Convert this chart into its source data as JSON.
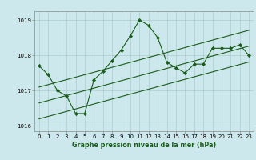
{
  "title": "",
  "xlabel": "Graphe pression niveau de la mer (hPa)",
  "ylabel": "",
  "bg_color": "#cce8ec",
  "grid_color": "#aacccc",
  "line_color": "#1a5c1a",
  "marker_color": "#1a5c1a",
  "x_data": [
    0,
    1,
    2,
    3,
    4,
    5,
    6,
    7,
    8,
    9,
    10,
    11,
    12,
    13,
    14,
    15,
    16,
    17,
    18,
    19,
    20,
    21,
    22,
    23
  ],
  "y_main": [
    1017.7,
    1017.45,
    1017.0,
    1016.85,
    1016.35,
    1016.35,
    1017.3,
    1017.55,
    1017.85,
    1018.15,
    1018.55,
    1019.0,
    1018.85,
    1018.5,
    1017.8,
    1017.65,
    1017.5,
    1017.75,
    1017.75,
    1018.2,
    1018.2,
    1018.2,
    1018.3,
    1018.0
  ],
  "y_trend_upper": [
    1017.1,
    1017.17,
    1017.24,
    1017.31,
    1017.38,
    1017.45,
    1017.52,
    1017.59,
    1017.66,
    1017.73,
    1017.8,
    1017.87,
    1017.94,
    1018.01,
    1018.08,
    1018.15,
    1018.22,
    1018.29,
    1018.36,
    1018.43,
    1018.5,
    1018.57,
    1018.64,
    1018.71
  ],
  "y_trend_lower": [
    1016.2,
    1016.27,
    1016.34,
    1016.41,
    1016.48,
    1016.55,
    1016.62,
    1016.69,
    1016.76,
    1016.83,
    1016.9,
    1016.97,
    1017.04,
    1017.11,
    1017.18,
    1017.25,
    1017.32,
    1017.39,
    1017.46,
    1017.53,
    1017.6,
    1017.67,
    1017.74,
    1017.81
  ],
  "y_trend_mid": [
    1016.65,
    1016.72,
    1016.79,
    1016.86,
    1016.93,
    1017.0,
    1017.07,
    1017.14,
    1017.21,
    1017.28,
    1017.35,
    1017.42,
    1017.49,
    1017.56,
    1017.63,
    1017.7,
    1017.77,
    1017.84,
    1017.91,
    1017.98,
    1018.05,
    1018.12,
    1018.19,
    1018.26
  ],
  "ylim": [
    1015.85,
    1019.25
  ],
  "xlim": [
    -0.5,
    23.5
  ],
  "yticks": [
    1016,
    1017,
    1018,
    1019
  ],
  "xticks": [
    0,
    1,
    2,
    3,
    4,
    5,
    6,
    7,
    8,
    9,
    10,
    11,
    12,
    13,
    14,
    15,
    16,
    17,
    18,
    19,
    20,
    21,
    22,
    23
  ],
  "label_fontsize": 5.8,
  "tick_fontsize": 5.0
}
